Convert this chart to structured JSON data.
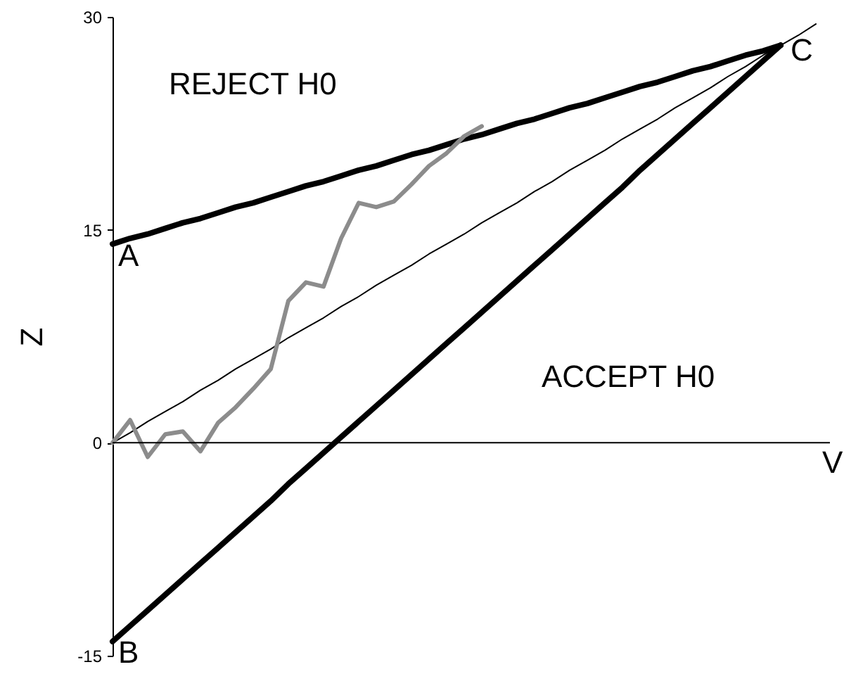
{
  "chart_data": {
    "type": "line",
    "xlabel": "V",
    "ylabel": "Z",
    "ylim": [
      -15,
      30
    ],
    "yticks": [
      -15,
      0,
      15,
      30
    ],
    "grid": false,
    "categories": [
      null,
      null,
      null,
      null,
      null,
      null,
      null,
      null,
      null,
      null,
      null,
      null,
      null,
      null,
      null,
      null,
      null,
      null,
      null,
      null,
      null,
      null,
      null,
      null,
      null,
      null,
      null,
      null,
      null,
      null,
      null,
      null,
      null,
      null,
      null,
      null,
      null,
      null,
      null,
      null,
      null
    ],
    "series": [
      {
        "color": "#000000",
        "values": [
          14,
          14.4,
          14.7,
          15.1,
          15.5,
          15.8,
          16.2,
          16.6,
          16.9,
          17.3,
          17.7,
          18.1,
          18.4,
          18.8,
          19.2,
          19.5,
          19.9,
          20.3,
          20.6,
          21,
          21.4,
          21.7,
          22.1,
          22.5,
          22.8,
          23.2,
          23.6,
          23.9,
          24.3,
          24.7,
          25.1,
          25.4,
          25.8,
          26.2,
          26.5,
          26.9,
          27.3,
          27.6,
          28,
          null,
          null
        ]
      },
      {
        "color": "#000000",
        "values": [
          -14,
          -12.9,
          -11.8,
          -10.7,
          -9.6,
          -8.5,
          -7.4,
          -6.3,
          -5.2,
          -4.1,
          -2.9,
          -1.8,
          -0.7,
          0.4,
          1.5,
          2.6,
          3.7,
          4.8,
          5.9,
          7,
          8.1,
          9.2,
          10.3,
          11.4,
          12.5,
          13.6,
          14.7,
          15.8,
          16.9,
          18,
          19.2,
          20.3,
          21.4,
          22.5,
          23.6,
          24.7,
          25.8,
          26.9,
          28,
          null,
          null
        ]
      },
      {
        "color": "#000000",
        "values": [
          0,
          0.7,
          1.5,
          2.2,
          2.9,
          3.7,
          4.4,
          5.2,
          5.9,
          6.6,
          7.4,
          8.1,
          8.8,
          9.6,
          10.3,
          11.1,
          11.8,
          12.5,
          13.3,
          14,
          14.7,
          15.5,
          16.2,
          16.9,
          17.7,
          18.4,
          19.2,
          19.9,
          20.6,
          21.4,
          22.1,
          22.8,
          23.6,
          24.3,
          25,
          25.8,
          26.5,
          27.3,
          28,
          28.7,
          29.5
        ]
      },
      {
        "color": "#8c8c8c",
        "values": [
          0,
          1.6,
          -1,
          0.6,
          0.8,
          -0.6,
          1.4,
          2.5,
          3.8,
          5.2,
          10,
          11.3,
          11,
          14.4,
          16.9,
          16.6,
          17,
          18.2,
          19.5,
          20.4,
          21.6,
          22.3,
          null,
          null,
          null,
          null,
          null,
          null,
          null,
          null,
          null,
          null,
          null,
          null,
          null,
          null,
          null,
          null,
          null,
          null,
          null
        ]
      }
    ],
    "ref_lines": [
      {
        "axis": "y",
        "value": 0,
        "color": "#000000"
      }
    ],
    "annotations": [
      "REJECT H0",
      "ACCEPT H0",
      "A",
      "B",
      "C"
    ]
  }
}
